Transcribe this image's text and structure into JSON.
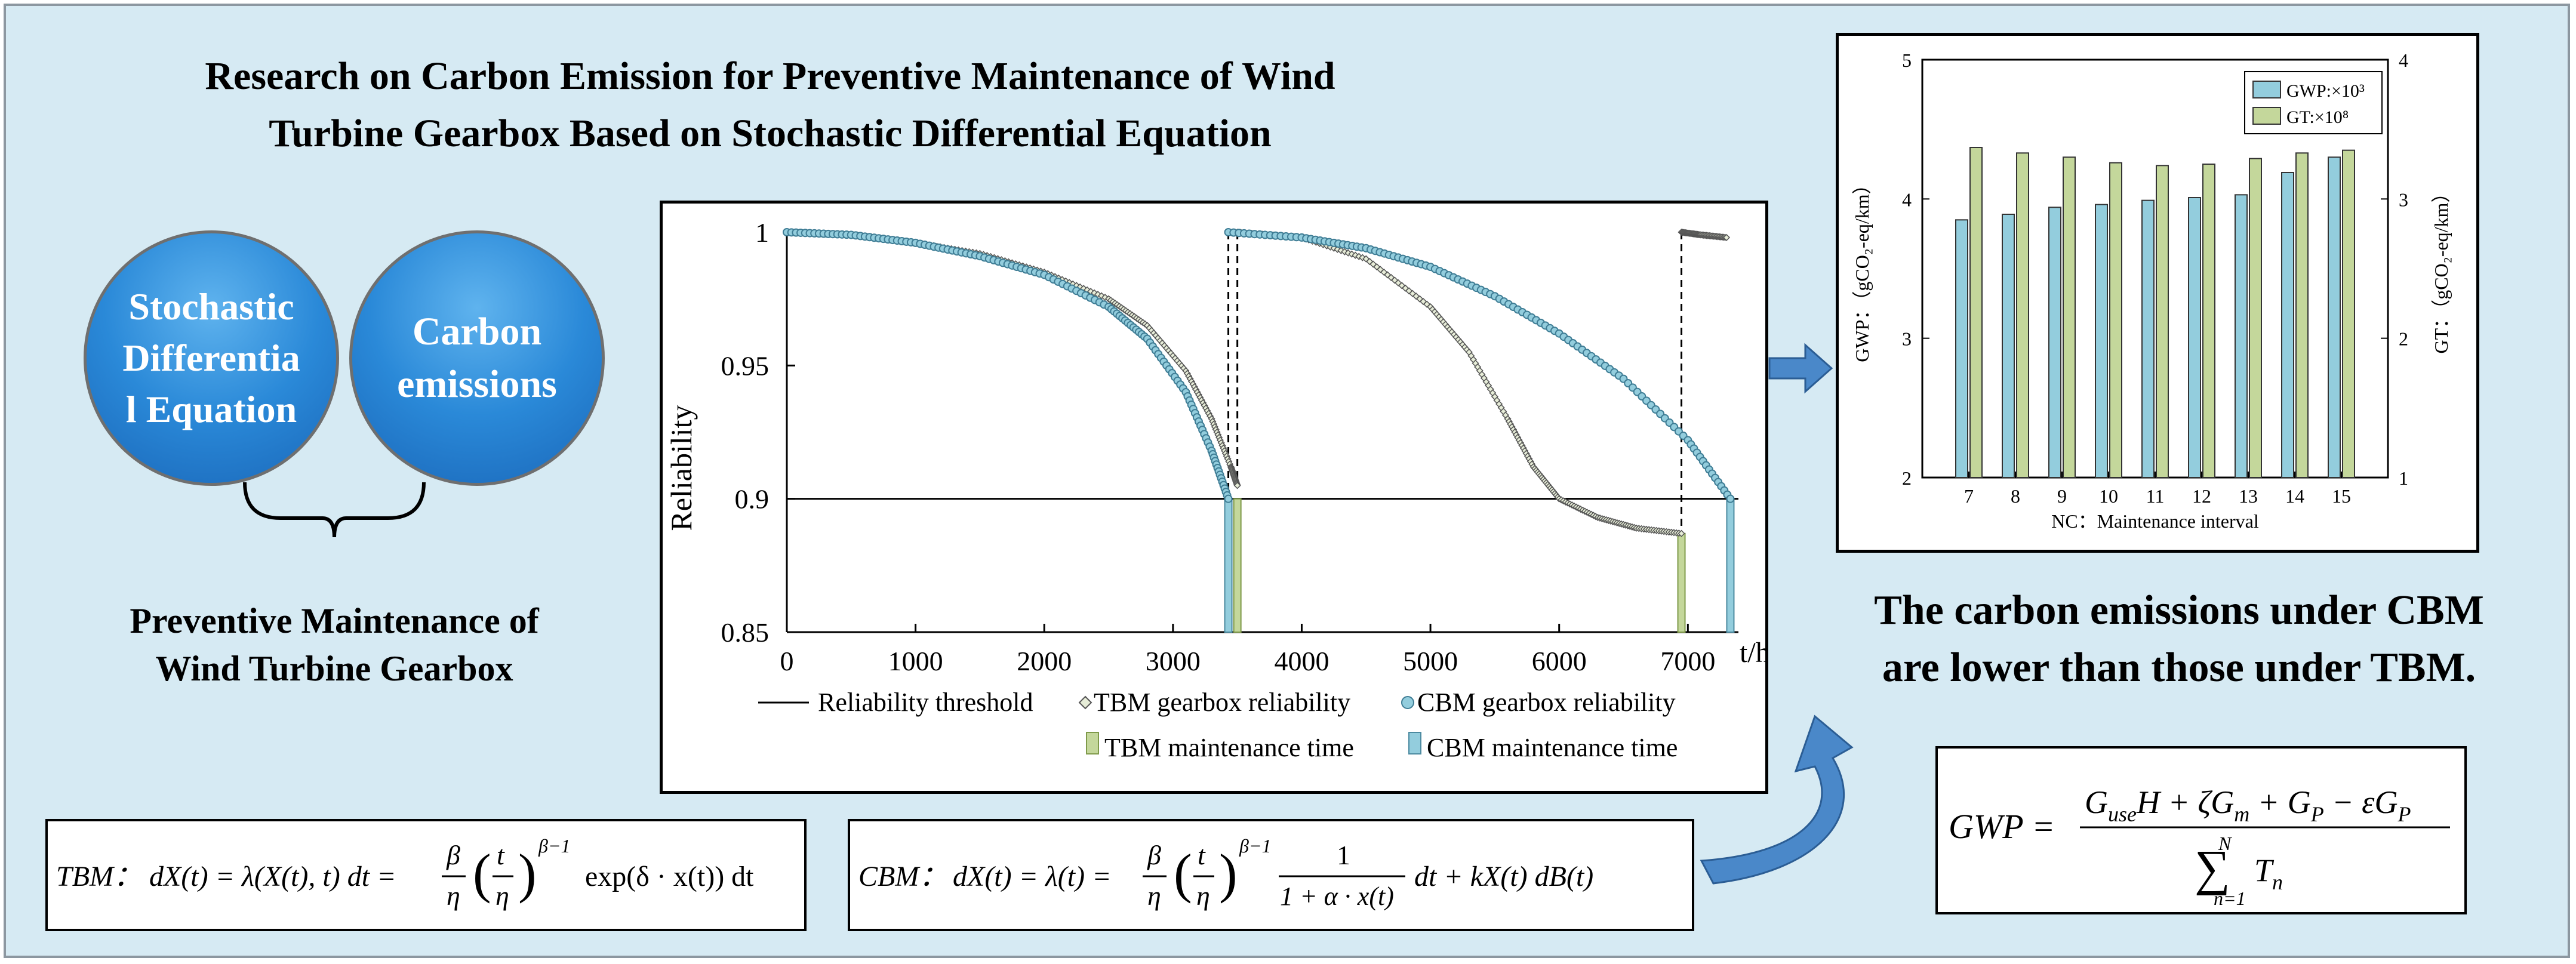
{
  "title": {
    "line1": "Research on Carbon Emission for Preventive Maintenance of Wind",
    "line2": "Turbine Gearbox Based on Stochastic Differential Equation"
  },
  "circles": {
    "left": "Stochastic\nDifferentia\nl Equation",
    "right": "Carbon\nemissions"
  },
  "preventive": {
    "line1": "Preventive Maintenance of",
    "line2": "Wind Turbine Gearbox"
  },
  "conclusion": {
    "line1": "The carbon emissions under CBM",
    "line2": "are lower than those under TBM."
  },
  "formulas": {
    "tbm_label": "TBM：",
    "cbm_label": "CBM：",
    "gwp_lhs": "GWP ="
  },
  "colors": {
    "tbm": "#c4d79b",
    "cbm": "#93cddd",
    "circle": "#2a89d8",
    "background": "#d6eaf3"
  },
  "chart_data": [
    {
      "type": "line",
      "title": "",
      "xlabel": "t/h",
      "ylabel": "Reliability",
      "xlim": [
        0,
        7300
      ],
      "ylim": [
        0.85,
        1.0
      ],
      "x_ticks": [
        "0",
        "1000",
        "2000",
        "3000",
        "4000",
        "5000",
        "6000",
        "7000"
      ],
      "y_ticks": [
        "1",
        "0.95",
        "0.9",
        "0.85"
      ],
      "legend": [
        {
          "name": "Reliability threshold",
          "style": "line"
        },
        {
          "name": "TBM gearbox reliability",
          "style": "diamond-markers"
        },
        {
          "name": "CBM gearbox reliability",
          "style": "circle-markers"
        },
        {
          "name": "TBM maintenance time",
          "style": "bar"
        },
        {
          "name": "CBM maintenance time",
          "style": "bar"
        }
      ],
      "threshold": 0.9,
      "tbm_maintenance_times": [
        3500,
        6950
      ],
      "cbm_maintenance_times": [
        3430,
        7330
      ],
      "series": [
        {
          "name": "TBM gearbox reliability",
          "segments": [
            {
              "x": [
                0,
                500,
                1000,
                1500,
                2000,
                2500,
                2800,
                3100,
                3300,
                3450,
                3500
              ],
              "y": [
                1.0,
                0.999,
                0.996,
                0.992,
                0.985,
                0.975,
                0.965,
                0.948,
                0.93,
                0.912,
                0.905
              ]
            },
            {
              "x": [
                3500,
                4000,
                4500,
                5000,
                5300,
                5600,
                5800,
                6000,
                6300,
                6600,
                6950
              ],
              "y": [
                1.0,
                0.998,
                0.99,
                0.972,
                0.955,
                0.93,
                0.912,
                0.9,
                0.893,
                0.889,
                0.887
              ]
            },
            {
              "x": [
                6950,
                7100,
                7300
              ],
              "y": [
                1.0,
                0.999,
                0.998
              ]
            }
          ]
        },
        {
          "name": "CBM gearbox reliability",
          "segments": [
            {
              "x": [
                0,
                500,
                1000,
                1500,
                2000,
                2500,
                2800,
                3100,
                3300,
                3430
              ],
              "y": [
                1.0,
                0.999,
                0.996,
                0.991,
                0.984,
                0.972,
                0.96,
                0.94,
                0.918,
                0.9
              ]
            },
            {
              "x": [
                3430,
                4000,
                4500,
                5000,
                5500,
                6000,
                6500,
                7000,
                7330
              ],
              "y": [
                1.0,
                0.998,
                0.994,
                0.987,
                0.976,
                0.962,
                0.945,
                0.922,
                0.9
              ]
            }
          ]
        }
      ]
    },
    {
      "type": "bar",
      "title": "",
      "xlabel": "NC：Maintenance interval",
      "ylabel_left": "GWP：（gCO₂-eq/km）",
      "ylabel_right": "GT：（gCO₂-eq/km）",
      "categories": [
        "7",
        "8",
        "9",
        "10",
        "11",
        "12",
        "13",
        "14",
        "15"
      ],
      "ylim_left": [
        2,
        5
      ],
      "ylim_right": [
        1,
        4
      ],
      "y_ticks_left": [
        "2",
        "3",
        "4",
        "5"
      ],
      "y_ticks_right": [
        "1",
        "2",
        "3",
        "4"
      ],
      "legend_position": "top-right",
      "series": [
        {
          "name": "GWP:×10³",
          "axis": "left",
          "values": [
            3.85,
            3.89,
            3.94,
            3.96,
            3.99,
            4.01,
            4.03,
            4.19,
            4.3
          ]
        },
        {
          "name": "GT:×10⁸",
          "axis": "right",
          "values": [
            3.37,
            3.33,
            3.3,
            3.26,
            3.24,
            3.25,
            3.29,
            3.33,
            3.35
          ]
        }
      ]
    }
  ]
}
